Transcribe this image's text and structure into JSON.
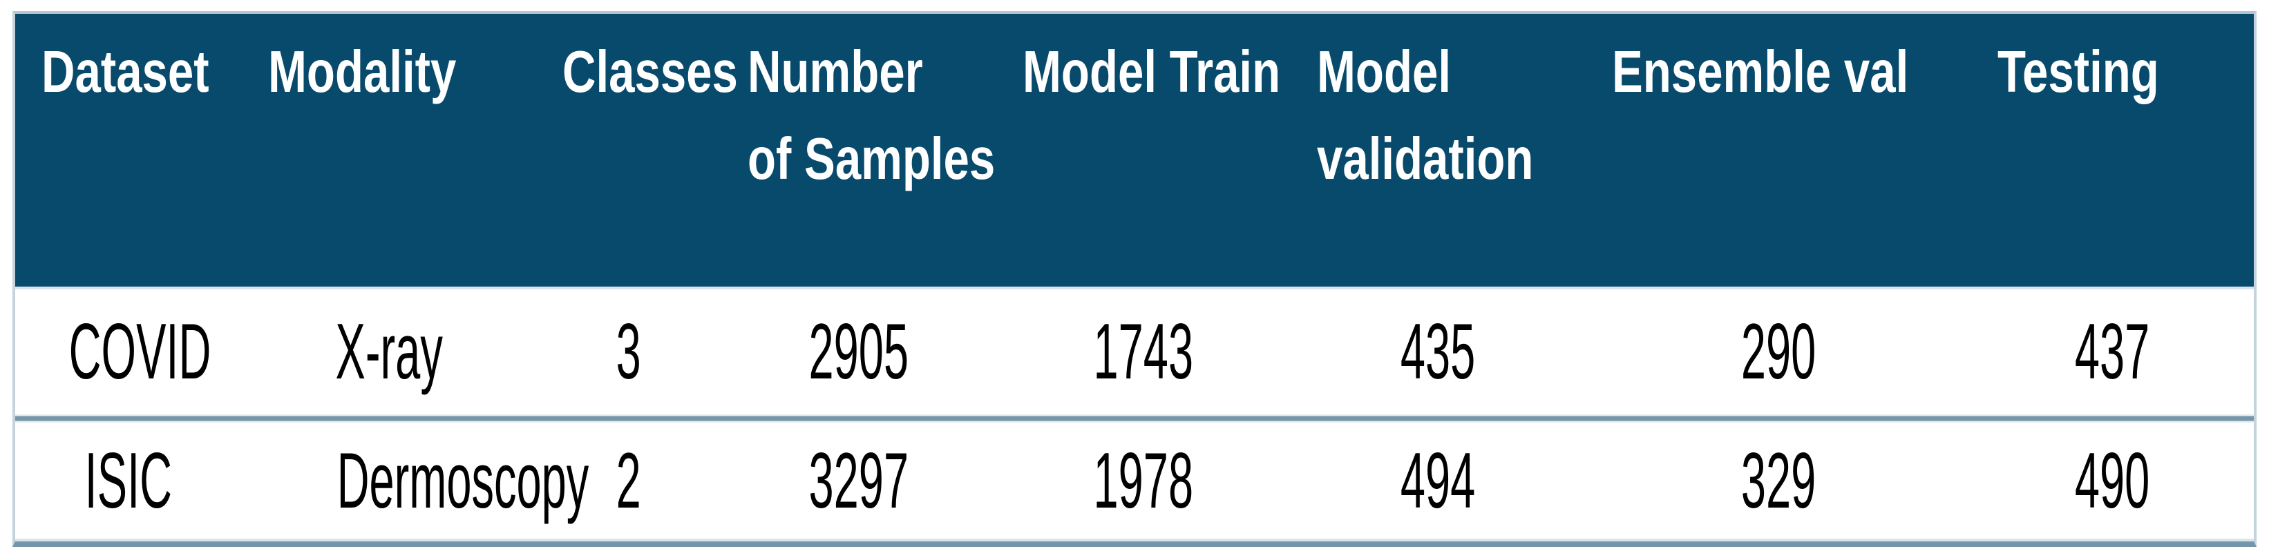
{
  "page": {
    "background": "#ffffff"
  },
  "table": {
    "description_colors": {
      "header_bg": "#084a6b",
      "header_text": "#ffffff",
      "row_bg": "#ffffff",
      "body_text": "#000000",
      "separator_line": "#7496a9",
      "outer_border_light": "#c3d4de",
      "top_border": "#b7c6d0",
      "grid_light_line": "#d9e4ec"
    },
    "header": [
      [
        "Dataset"
      ],
      [
        "Modality"
      ],
      [
        "Classes"
      ],
      [
        "Number",
        "of Samples"
      ],
      [
        "Model Train"
      ],
      [
        "Model",
        "validation"
      ],
      [
        "Ensemble val"
      ],
      [
        "Testing"
      ]
    ],
    "rows": [
      [
        "COVID",
        "X-ray",
        "3",
        "2905",
        "1743",
        "435",
        "290",
        "437"
      ],
      [
        "ISIC",
        "Dermoscopy",
        "2",
        "3297",
        "1978",
        "494",
        "329",
        "490"
      ]
    ]
  },
  "chart_data": {
    "type": "table",
    "columns": [
      "Dataset",
      "Modality",
      "Classes",
      "Number of Samples",
      "Model Train",
      "Model validation",
      "Ensemble val",
      "Testing"
    ],
    "rows": [
      {
        "Dataset": "COVID",
        "Modality": "X-ray",
        "Classes": 3,
        "Number of Samples": 2905,
        "Model Train": 1743,
        "Model validation": 435,
        "Ensemble val": 290,
        "Testing": 437
      },
      {
        "Dataset": "ISIC",
        "Modality": "Dermoscopy",
        "Classes": 2,
        "Number of Samples": 3297,
        "Model Train": 1978,
        "Model validation": 494,
        "Ensemble val": 329,
        "Testing": 490
      }
    ]
  }
}
